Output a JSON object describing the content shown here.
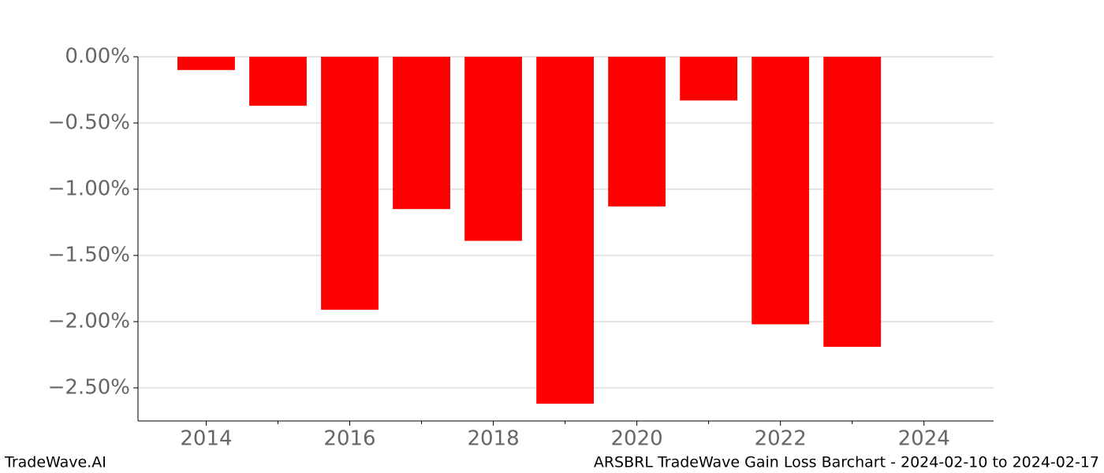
{
  "chart_data": {
    "type": "bar",
    "x": [
      2014,
      2015,
      2016,
      2017,
      2018,
      2019,
      2020,
      2021,
      2022,
      2023
    ],
    "values": [
      -0.1,
      -0.37,
      -1.91,
      -1.15,
      -1.39,
      -2.62,
      -1.13,
      -0.33,
      -2.02,
      -2.19
    ],
    "color": "#ff0000",
    "xlim": [
      2013.05,
      2024.97
    ],
    "xticks": [
      2014,
      2016,
      2018,
      2020,
      2022,
      2024
    ],
    "xminorticks": [
      2015,
      2017,
      2019,
      2021,
      2023
    ],
    "ylim": [
      -2.75,
      0
    ],
    "yticks": [
      {
        "value": 0,
        "label": "0.00%"
      },
      {
        "value": -0.5,
        "label": "−0.50%"
      },
      {
        "value": -1,
        "label": "−1.00%"
      },
      {
        "value": -1.5,
        "label": "−1.50%"
      },
      {
        "value": -2,
        "label": "−2.00%"
      },
      {
        "value": -2.5,
        "label": "−2.50%"
      }
    ],
    "grid": true,
    "footer_left": "TradeWave.AI",
    "footer_right": "ARSBRL TradeWave Gain Loss Barchart - 2024-02-10 to 2024-02-17"
  }
}
